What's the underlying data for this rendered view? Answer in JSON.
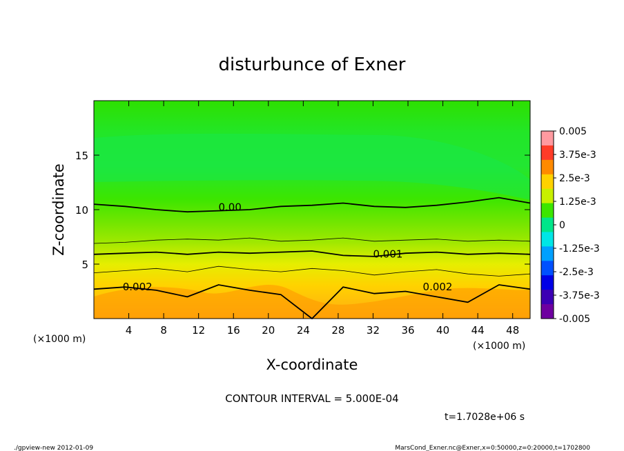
{
  "chart_data": {
    "type": "heatmap",
    "title": "disturbunce of Exner",
    "xlabel": "X-coordinate",
    "ylabel": "Z-coordinate",
    "x_unit_left": "(×1000 m)",
    "x_unit_right": "(×1000 m)",
    "xlim": [
      0,
      50
    ],
    "ylim": [
      0,
      20
    ],
    "x_ticks": [
      "4",
      "8",
      "12",
      "16",
      "20",
      "24",
      "28",
      "32",
      "36",
      "40",
      "44",
      "48"
    ],
    "y_ticks": [
      "5",
      "10",
      "15"
    ],
    "colorbar_labels": [
      "0.005",
      "3.75e-3",
      "2.5e-3",
      "1.25e-3",
      "0",
      "-1.25e-3",
      "-2.5e-3",
      "-3.75e-3",
      "-0.005"
    ],
    "colorbar_colors": [
      "#ff9aa0",
      "#ff3c28",
      "#ff8a00",
      "#ffd200",
      "#c8f000",
      "#3ce600",
      "#00e68a",
      "#00e6e6",
      "#00a0ff",
      "#0050ff",
      "#0000e6",
      "#3c00b4",
      "#6e00a0"
    ],
    "contour_labels": [
      {
        "text": "0.00",
        "x": 15.6,
        "z": 9.9
      },
      {
        "text": "0.001",
        "x": 33.7,
        "z": 5.6
      },
      {
        "text": "0.002",
        "x": 5.0,
        "z": 2.6
      },
      {
        "text": "0.002",
        "x": 39.4,
        "z": 2.6
      }
    ],
    "contour_lines": [
      {
        "name": "0.0",
        "z": [
          10.5,
          10.3,
          10.0,
          9.8,
          9.9,
          10.0,
          10.3,
          10.4,
          10.6,
          10.3,
          10.2,
          10.4,
          10.7,
          11.1,
          10.6
        ]
      },
      {
        "name": "5e-4",
        "z": [
          6.9,
          7.0,
          7.2,
          7.3,
          7.2,
          7.4,
          7.1,
          7.2,
          7.4,
          7.1,
          7.2,
          7.3,
          7.1,
          7.2,
          7.1
        ]
      },
      {
        "name": "0.001",
        "z": [
          5.9,
          6.0,
          6.1,
          5.9,
          6.1,
          6.0,
          6.1,
          6.2,
          5.8,
          5.7,
          6.0,
          6.1,
          5.9,
          6.0,
          5.9
        ]
      },
      {
        "name": "0.0015",
        "z": [
          4.2,
          4.4,
          4.6,
          4.3,
          4.8,
          4.5,
          4.3,
          4.6,
          4.4,
          4.0,
          4.3,
          4.5,
          4.1,
          3.9,
          4.1
        ]
      },
      {
        "name": "0.002",
        "z": [
          2.7,
          2.9,
          2.6,
          2.0,
          3.1,
          2.6,
          2.2,
          0.0,
          2.9,
          2.3,
          2.5,
          2.0,
          1.5,
          3.1,
          2.7
        ]
      }
    ],
    "contour_interval": "CONTOUR INTERVAL = 5.000E-04",
    "time_label": "t=1.7028e+06 s"
  },
  "footer": {
    "left": "./gpview-new   2012-01-09",
    "right": "MarsCond_Exner.nc@Exner,x=0:50000,z=0:20000,t=1702800"
  }
}
